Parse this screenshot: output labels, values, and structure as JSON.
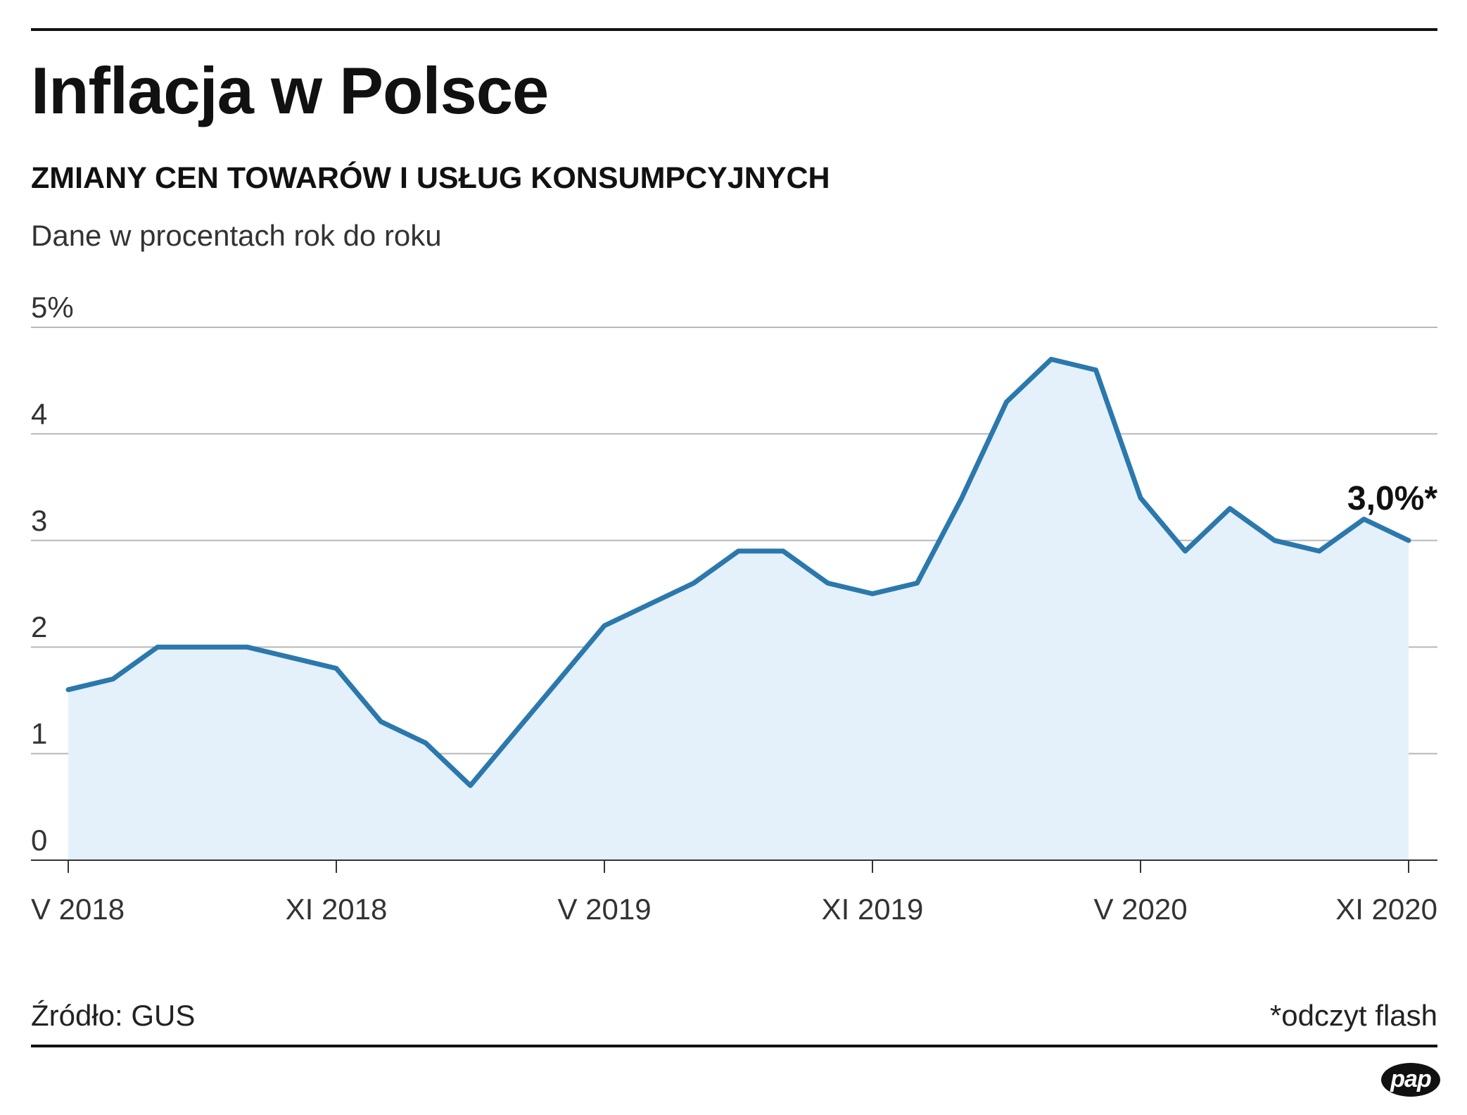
{
  "header": {
    "title": "Inflacja w Polsce",
    "subtitle": "ZMIANY CEN TOWARÓW I USŁUG KONSUMPCYJNYCH",
    "unit_note": "Dane w procentach rok do roku"
  },
  "footer": {
    "source": "Źródło: GUS",
    "flash_note": "*odczyt flash",
    "logo_text": "pap"
  },
  "colors": {
    "line": "#2b78ad",
    "area": "#e4f1fb",
    "grid": "#b8b8b8",
    "text": "#111111"
  },
  "chart_data": {
    "type": "area",
    "title": "Inflacja w Polsce",
    "subtitle": "ZMIANY CEN TOWARÓW I USŁUG KONSUMPCYJNYCH",
    "ylabel": "Dane w procentach rok do roku",
    "xlabel": "",
    "ylim": [
      0,
      5
    ],
    "yticks": [
      0,
      1,
      2,
      3,
      4,
      5
    ],
    "ytick_labels": [
      "0",
      "1",
      "2",
      "3",
      "4",
      "5%"
    ],
    "xlim": [
      "2018-05",
      "2020-11"
    ],
    "xticks": [
      "2018-05",
      "2018-11",
      "2019-05",
      "2019-11",
      "2020-05",
      "2020-11"
    ],
    "xtick_labels": [
      "V 2018",
      "XI 2018",
      "V 2019",
      "XI 2019",
      "V 2020",
      "XI 2020"
    ],
    "grid": true,
    "legend": false,
    "series": [
      {
        "x": [
          "2018-05",
          "2018-06",
          "2018-07",
          "2018-08",
          "2018-09",
          "2018-10",
          "2018-11",
          "2018-12",
          "2019-01",
          "2019-02",
          "2019-03",
          "2019-04",
          "2019-05",
          "2019-06",
          "2019-07",
          "2019-08",
          "2019-09",
          "2019-10",
          "2019-11",
          "2019-12",
          "2020-01",
          "2020-02",
          "2020-03",
          "2020-04",
          "2020-05",
          "2020-06",
          "2020-07",
          "2020-08",
          "2020-09",
          "2020-10",
          "2020-11"
        ],
        "values": [
          1.6,
          1.7,
          2.0,
          2.0,
          2.0,
          1.9,
          1.8,
          1.3,
          1.1,
          0.7,
          1.2,
          1.7,
          2.2,
          2.4,
          2.6,
          2.9,
          2.9,
          2.6,
          2.5,
          2.6,
          3.4,
          4.3,
          4.7,
          4.6,
          3.4,
          2.9,
          3.3,
          3.0,
          2.9,
          3.2,
          3.0
        ]
      }
    ],
    "annotations": [
      {
        "x": "2020-11",
        "y": 3.0,
        "text": "3,0%*"
      }
    ]
  }
}
